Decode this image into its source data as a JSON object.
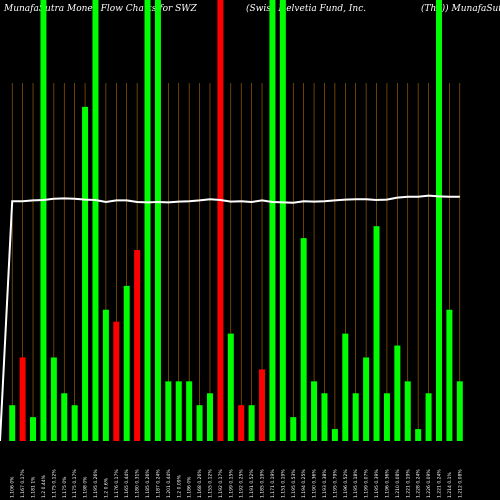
{
  "header": {
    "left": "MunafaSutra  Money Flow  Charts for SWZ",
    "center": "(Swiss Helvetia  Fund,  Inc.",
    "right": "(The)) MunafaSutra.com"
  },
  "colors": {
    "background": "#000000",
    "inflow": "#00ff00",
    "outflow": "#ff0000",
    "grid": "#b36b00",
    "price_line": "#ffffff"
  },
  "chart_data": {
    "type": "bar",
    "title": "MunafaSutra  Money Flow  Charts for SWZ",
    "categories": [
      "1.106 0%",
      "1.167 0.17%",
      "1.181 1%",
      "1.2 0.44%",
      "1.175 0.12%",
      "1.175 0%",
      "1.175 0.17%",
      "1.198 0%",
      "1.195 0.26%",
      "1.2 0.6%",
      "1.176 0.17%",
      "1.165 0.44%",
      "1.180 0.31%",
      "1.185 0.26%",
      "1.187 0.24%",
      "1.201 0.44%",
      "1.2 0.09%",
      "1.186 0%",
      "1.168 0.26%",
      "1.155 0.12%",
      "1.192 0.17%",
      "1.199 0.15%",
      "1.192 0.25%",
      "1.191 0.52%",
      "1.185 0.19%",
      "1.171 0.19%",
      "1.151 0.19%",
      "1.195 0.53%",
      "1.194 0.25%",
      "1.190 0.36%",
      "1.193 0.38%",
      "1.195 0.79%",
      "1.196 0.52%",
      "1.195 0.18%",
      "1.199 0.07%",
      "1.195 0.39%",
      "1.196 0.36%",
      "1.210 0.08%",
      "1.221 0.19%",
      "1.228 0.24%",
      "1.226 0.09%",
      "1.221 0.24%",
      "1.214 0.1%",
      "1.212 0.08%"
    ],
    "series": [
      {
        "values": [
          3,
          7,
          2,
          5,
          7,
          4,
          3,
          28,
          13,
          11,
          10,
          13,
          16,
          20,
          4,
          5,
          5,
          5,
          3,
          4,
          8,
          9,
          3,
          3,
          6,
          4,
          3,
          2,
          17,
          5,
          4,
          1,
          9,
          4,
          7,
          18,
          4,
          8,
          5,
          1,
          4,
          5,
          11,
          5
        ],
        "colors": [
          "g",
          "r",
          "g",
          "g",
          "g",
          "g",
          "g",
          "g",
          "g",
          "g",
          "r",
          "g",
          "r",
          "g",
          "g",
          "g",
          "g",
          "g",
          "g",
          "g",
          "r",
          "g",
          "r",
          "g",
          "r",
          "g",
          "g",
          "g",
          "g",
          "g",
          "g",
          "g",
          "g",
          "g",
          "g",
          "g",
          "g",
          "g",
          "g",
          "g",
          "g",
          "g",
          "g",
          "g"
        ],
        "tall": [
          false,
          false,
          false,
          true,
          false,
          false,
          false,
          false,
          true,
          false,
          false,
          false,
          false,
          true,
          true,
          false,
          false,
          false,
          false,
          false,
          true,
          false,
          false,
          false,
          false,
          true,
          true,
          false,
          false,
          false,
          false,
          false,
          false,
          false,
          false,
          false,
          false,
          false,
          false,
          false,
          false,
          true,
          false,
          false
        ]
      },
      {
        "values": [
          0.738,
          0.738,
          0.736,
          0.735,
          0.732,
          0.731,
          0.732,
          0.734,
          0.735,
          0.74,
          0.736,
          0.736,
          0.74,
          0.741,
          0.74,
          0.741,
          0.739,
          0.738,
          0.736,
          0.733,
          0.735,
          0.739,
          0.738,
          0.74,
          0.736,
          0.74,
          0.741,
          0.742,
          0.738,
          0.739,
          0.738,
          0.736,
          0.734,
          0.733,
          0.733,
          0.735,
          0.734,
          0.729,
          0.727,
          0.727,
          0.724,
          0.726,
          0.727,
          0.727
        ]
      }
    ],
    "ylim": [
      0,
      1
    ]
  }
}
